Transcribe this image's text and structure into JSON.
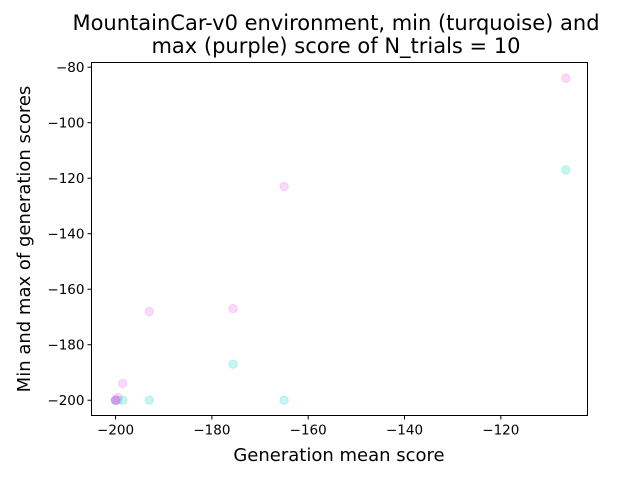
{
  "chart_data": {
    "type": "scatter",
    "title_line1": "MountainCar-v0 environment, min (turquoise) and",
    "title_line2": "max (purple) score of N_trials = 10",
    "xlabel": "Generation mean score",
    "ylabel": "Min and max of generation scores",
    "xlim": [
      -205,
      -102
    ],
    "ylim": [
      -205.5,
      -78.3
    ],
    "xticks": [
      -200,
      -180,
      -160,
      -140,
      -120
    ],
    "yticks": [
      -200,
      -180,
      -160,
      -140,
      -120,
      -100,
      -80
    ],
    "grid": false,
    "series": [
      {
        "color": "#40e0d0",
        "x": [
          -200,
          -200,
          -200,
          -199.5,
          -198.5,
          -193,
          -175.6,
          -165,
          -106.5
        ],
        "y": [
          -200,
          -200,
          -200,
          -200,
          -200,
          -200,
          -187,
          -200,
          -117
        ]
      },
      {
        "color": "#ee82ee",
        "x": [
          -200,
          -200,
          -200,
          -199.5,
          -198.5,
          -193,
          -175.6,
          -165,
          -106.5
        ],
        "y": [
          -200,
          -200,
          -200,
          -199,
          -194,
          -168,
          -167,
          -123,
          -84
        ]
      }
    ]
  }
}
